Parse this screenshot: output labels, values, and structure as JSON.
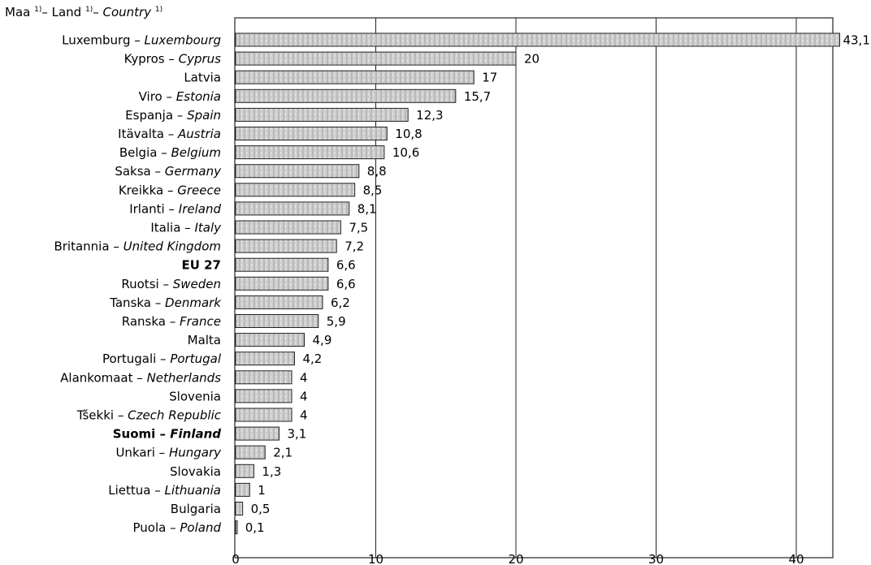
{
  "chart_data": {
    "type": "bar",
    "orientation": "horizontal",
    "header": {
      "fi": "Maa",
      "sv": "Land",
      "en": "Country",
      "footnote_mark": "1)"
    },
    "categories": [
      {
        "fi": "Luxemburg",
        "en": "Luxembourg",
        "bold": false
      },
      {
        "fi": "Kypros",
        "en": "Cyprus",
        "bold": false
      },
      {
        "fi": "Latvia",
        "en": "",
        "bold": false
      },
      {
        "fi": "Viro",
        "en": "Estonia",
        "bold": false
      },
      {
        "fi": "Espanja",
        "en": "Spain",
        "bold": false
      },
      {
        "fi": "Itävalta",
        "en": "Austria",
        "bold": false
      },
      {
        "fi": "Belgia",
        "en": "Belgium",
        "bold": false
      },
      {
        "fi": "Saksa",
        "en": "Germany",
        "bold": false
      },
      {
        "fi": "Kreikka",
        "en": "Greece",
        "bold": false
      },
      {
        "fi": "Irlanti",
        "en": "Ireland",
        "bold": false
      },
      {
        "fi": "Italia",
        "en": "Italy",
        "bold": false
      },
      {
        "fi": "Britannia",
        "en": "United Kingdom",
        "bold": false
      },
      {
        "fi": "EU 27",
        "en": "",
        "bold": true
      },
      {
        "fi": "Ruotsi",
        "en": "Sweden",
        "bold": false
      },
      {
        "fi": "Tanska",
        "en": "Denmark",
        "bold": false
      },
      {
        "fi": "Ranska",
        "en": "France",
        "bold": false
      },
      {
        "fi": "Malta",
        "en": "",
        "bold": false
      },
      {
        "fi": "Portugali",
        "en": "Portugal",
        "bold": false
      },
      {
        "fi": "Alankomaat",
        "en": "Netherlands",
        "bold": false
      },
      {
        "fi": "Slovenia",
        "en": "",
        "bold": false
      },
      {
        "fi": "Tšekki",
        "en": "Czech Republic",
        "bold": false
      },
      {
        "fi": "Suomi",
        "en": "Finland",
        "bold": true
      },
      {
        "fi": "Unkari",
        "en": "Hungary",
        "bold": false
      },
      {
        "fi": "Slovakia",
        "en": "",
        "bold": false
      },
      {
        "fi": "Liettua",
        "en": "Lithuania",
        "bold": false
      },
      {
        "fi": "Bulgaria",
        "en": "",
        "bold": false
      },
      {
        "fi": "Puola",
        "en": "Poland",
        "bold": false
      }
    ],
    "values": [
      43.1,
      20,
      17,
      15.7,
      12.3,
      10.8,
      10.6,
      8.8,
      8.5,
      8.1,
      7.5,
      7.2,
      6.6,
      6.6,
      6.2,
      5.9,
      4.9,
      4.2,
      4,
      4,
      4,
      3.1,
      2.1,
      1.3,
      1,
      0.5,
      0.1
    ],
    "value_labels": [
      "43,1",
      "20",
      "17",
      "15,7",
      "12,3",
      "10,8",
      "10,6",
      "8,8",
      "8,5",
      "8,1",
      "7,5",
      "7,2",
      "6,6",
      "6,6",
      "6,2",
      "5,9",
      "4,9",
      "4,2",
      "4",
      "4",
      "4",
      "3,1",
      "2,1",
      "1,3",
      "1",
      "0,5",
      "0,1"
    ],
    "xlim": [
      0,
      45
    ],
    "xticks": [
      0,
      10,
      20,
      30,
      40
    ],
    "xtick_labels": [
      "0",
      "10",
      "20",
      "30",
      "40"
    ],
    "grid": true,
    "colors": {
      "bar_fill": "#c8c8c8",
      "bar_stroke": "#222222",
      "grid": "#222222"
    }
  }
}
